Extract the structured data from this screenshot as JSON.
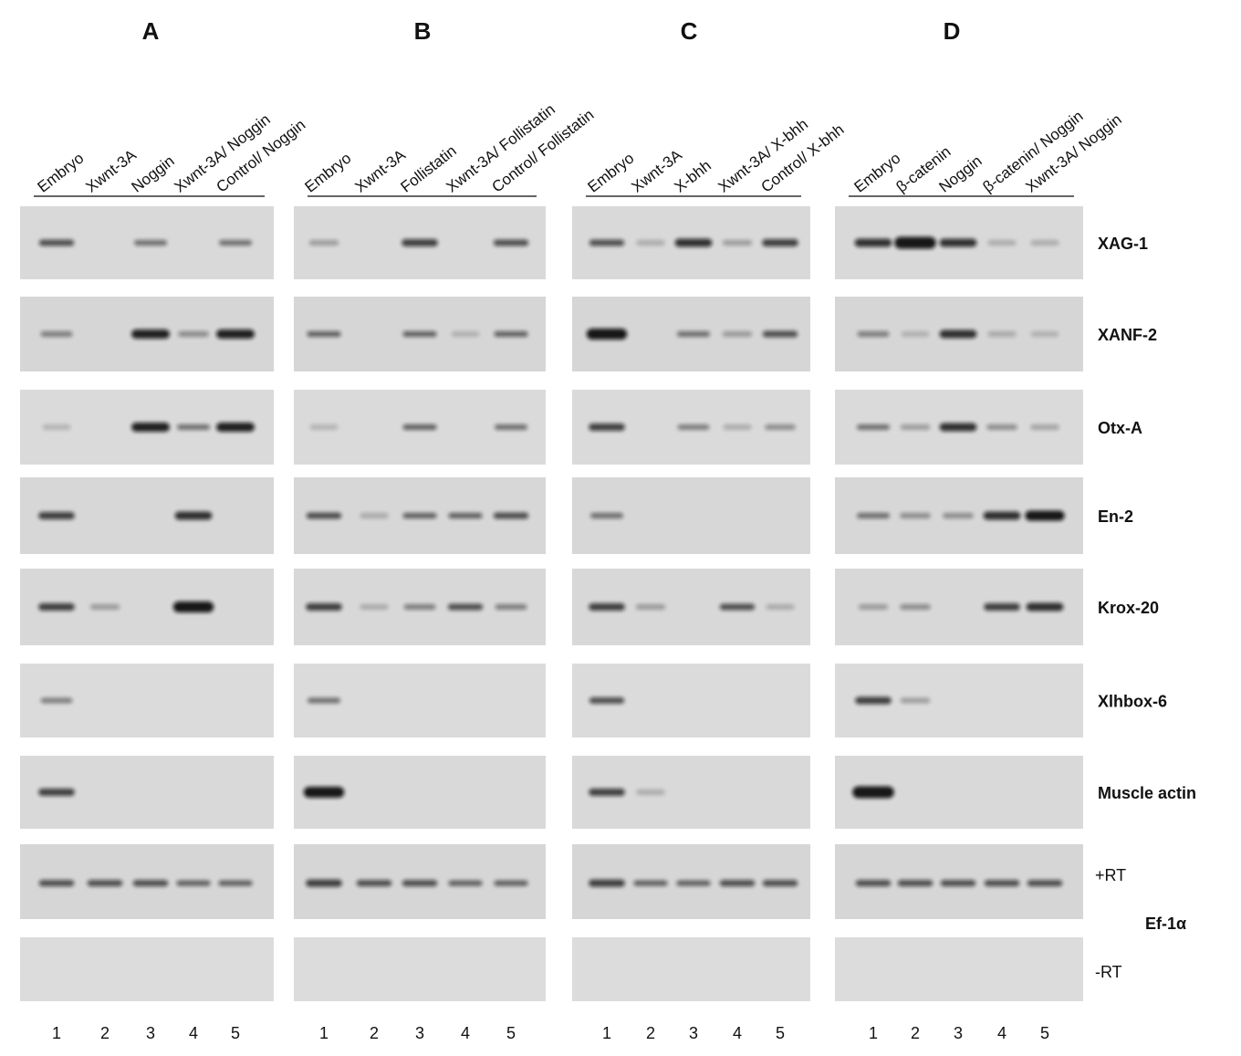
{
  "panels": [
    {
      "title": "A",
      "lanes": [
        "Embryo",
        "Xwnt-3A",
        "Noggin",
        "Xwnt-3A/ Noggin",
        "Control/ Noggin"
      ],
      "lane_numbers": [
        "1",
        "2",
        "3",
        "4",
        "5"
      ]
    },
    {
      "title": "B",
      "lanes": [
        "Embryo",
        "Xwnt-3A",
        "Follistatin",
        "Xwnt-3A/ Follistatin",
        "Control/ Follistatin"
      ],
      "lane_numbers": [
        "1",
        "2",
        "3",
        "4",
        "5"
      ]
    },
    {
      "title": "C",
      "lanes": [
        "Embryo",
        "Xwnt-3A",
        "X-bhh",
        "Xwnt-3A/ X-bhh",
        "Control/ X-bhh"
      ],
      "lane_numbers": [
        "1",
        "2",
        "3",
        "4",
        "5"
      ]
    },
    {
      "title": "D",
      "lanes": [
        "Embryo",
        "β-catenin",
        "Noggin",
        "β-catenin/ Noggin",
        "Xwnt-3A/ Noggin"
      ],
      "lane_numbers": [
        "1",
        "2",
        "3",
        "4",
        "5"
      ]
    }
  ],
  "rows": [
    "XAG-1",
    "XANF-2",
    "Otx-A",
    "En-2",
    "Krox-20",
    "Xlhbox-6",
    "Muscle actin"
  ],
  "rt_labels": [
    "+RT",
    "-RT"
  ],
  "control_gene": "Ef-1α"
}
